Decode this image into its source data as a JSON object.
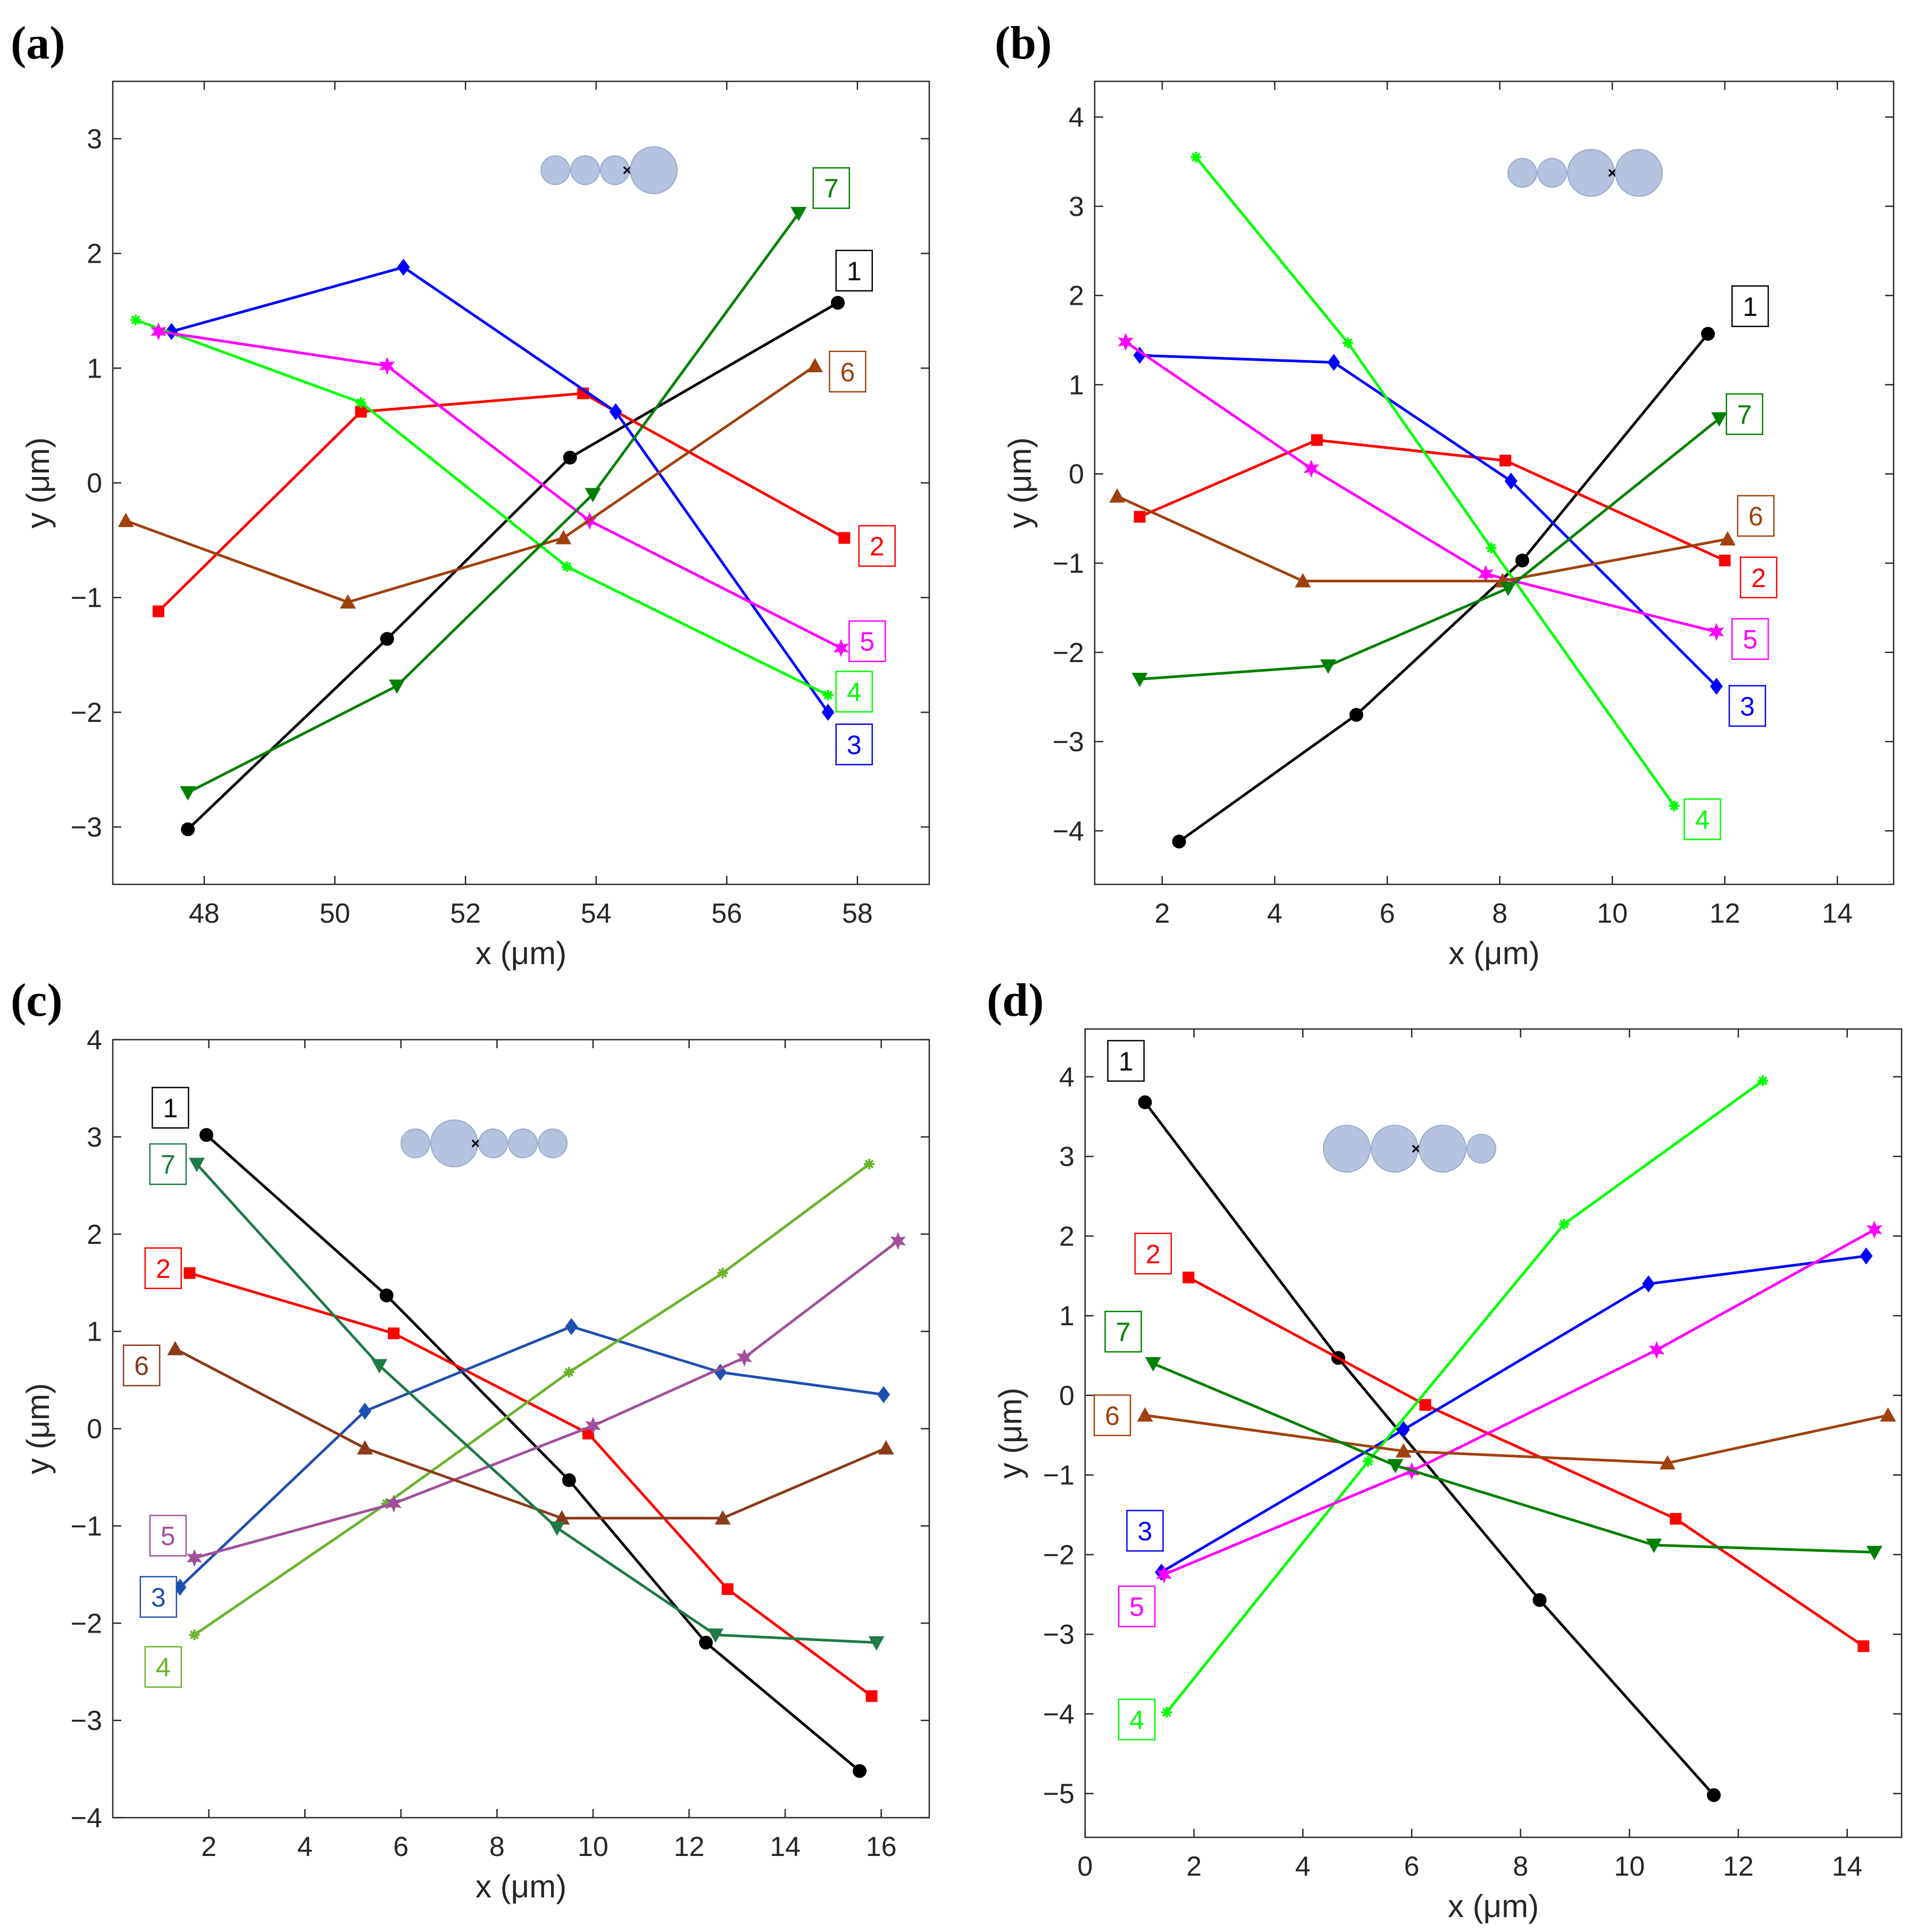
{
  "figure": {
    "marker_cross": "×"
  },
  "chart_data": [
    {
      "type": "line",
      "panel": "(a)",
      "xlabel": "x (μm)",
      "ylabel": "y (μm)",
      "xlim": [
        46.6,
        59.1
      ],
      "ylim": [
        -3.5,
        3.5
      ],
      "xticks": [
        48,
        50,
        52,
        54,
        56,
        58
      ],
      "yticks": [
        -3,
        -2,
        -1,
        0,
        1,
        2,
        3
      ],
      "inset": {
        "sizes": [
          "small",
          "small",
          "small",
          "large"
        ],
        "cross_index": 2
      },
      "series": [
        {
          "name": "1",
          "color": "#000000",
          "marker": "circle",
          "x": [
            47.75,
            50.8,
            53.6,
            57.7
          ],
          "y": [
            -3.02,
            -1.36,
            0.22,
            1.57
          ],
          "label_pos": [
            57.95,
            1.85
          ]
        },
        {
          "name": "2",
          "color": "#ff0000",
          "marker": "square",
          "x": [
            47.3,
            50.4,
            53.8,
            57.8
          ],
          "y": [
            -1.12,
            0.62,
            0.78,
            -0.48
          ],
          "label_pos": [
            58.3,
            -0.55
          ]
        },
        {
          "name": "3",
          "color": "#0000ff",
          "marker": "diamond",
          "x": [
            47.5,
            51.05,
            54.3,
            57.55
          ],
          "y": [
            1.32,
            1.88,
            0.62,
            -2.0
          ],
          "label_pos": [
            57.95,
            -2.28
          ]
        },
        {
          "name": "4",
          "color": "#00ff00",
          "marker": "plus",
          "x": [
            46.95,
            50.4,
            53.55,
            57.55
          ],
          "y": [
            1.42,
            0.7,
            -0.73,
            -1.85
          ],
          "label_pos": [
            57.95,
            -1.82
          ]
        },
        {
          "name": "5",
          "color": "#ff00ff",
          "marker": "hexagram",
          "x": [
            47.3,
            50.8,
            53.9,
            57.75
          ],
          "y": [
            1.32,
            1.02,
            -0.33,
            -1.44
          ],
          "label_pos": [
            58.15,
            -1.38
          ]
        },
        {
          "name": "6",
          "color": "#a0410d",
          "marker": "triangle-up",
          "x": [
            46.8,
            50.2,
            53.5,
            57.35
          ],
          "y": [
            -0.33,
            -1.04,
            -0.48,
            1.02
          ],
          "label_pos": [
            57.85,
            0.97
          ]
        },
        {
          "name": "7",
          "color": "#008000",
          "marker": "triangle-down",
          "x": [
            47.75,
            50.95,
            53.95,
            57.1
          ],
          "y": [
            -2.7,
            -1.77,
            -0.1,
            2.35
          ],
          "label_pos": [
            57.6,
            2.57
          ]
        }
      ]
    },
    {
      "type": "line",
      "panel": "(b)",
      "xlabel": "x (μm)",
      "ylabel": "y (μm)",
      "xlim": [
        0.8,
        15.0
      ],
      "ylim": [
        -4.6,
        4.4
      ],
      "xticks": [
        2,
        4,
        6,
        8,
        10,
        12,
        14
      ],
      "yticks": [
        -4,
        -3,
        -2,
        -1,
        0,
        1,
        2,
        3,
        4
      ],
      "inset": {
        "sizes": [
          "small",
          "small",
          "large",
          "large"
        ],
        "cross_index": 2
      },
      "series": [
        {
          "name": "1",
          "color": "#000000",
          "marker": "circle",
          "x": [
            2.3,
            5.45,
            8.4,
            11.7
          ],
          "y": [
            -4.12,
            -2.7,
            -0.97,
            1.57
          ],
          "label_pos": [
            12.45,
            1.88
          ]
        },
        {
          "name": "2",
          "color": "#ff0000",
          "marker": "square",
          "x": [
            1.6,
            4.75,
            8.1,
            12.0
          ],
          "y": [
            -0.48,
            0.38,
            0.15,
            -0.97
          ],
          "label_pos": [
            12.6,
            -1.16
          ]
        },
        {
          "name": "3",
          "color": "#0000ff",
          "marker": "diamond",
          "x": [
            1.6,
            5.05,
            8.2,
            11.85
          ],
          "y": [
            1.33,
            1.25,
            -0.08,
            -2.38
          ],
          "label_pos": [
            12.4,
            -2.6
          ]
        },
        {
          "name": "4",
          "color": "#00ff00",
          "marker": "plus",
          "x": [
            2.6,
            5.3,
            7.85,
            11.1
          ],
          "y": [
            3.55,
            1.47,
            -0.83,
            -3.72
          ],
          "label_pos": [
            11.6,
            -3.87
          ]
        },
        {
          "name": "5",
          "color": "#ff00ff",
          "marker": "hexagram",
          "x": [
            1.35,
            4.65,
            7.75,
            11.85
          ],
          "y": [
            1.48,
            0.06,
            -1.12,
            -1.77
          ],
          "label_pos": [
            12.45,
            -1.85
          ]
        },
        {
          "name": "6",
          "color": "#a0410d",
          "marker": "triangle-up",
          "x": [
            1.2,
            4.5,
            8.05,
            12.05
          ],
          "y": [
            -0.25,
            -1.2,
            -1.2,
            -0.73
          ],
          "label_pos": [
            12.55,
            -0.47
          ]
        },
        {
          "name": "7",
          "color": "#008000",
          "marker": "triangle-down",
          "x": [
            1.6,
            4.95,
            8.15,
            11.9
          ],
          "y": [
            -2.3,
            -2.15,
            -1.28,
            0.62
          ],
          "label_pos": [
            12.35,
            0.67
          ]
        }
      ]
    },
    {
      "type": "line",
      "panel": "(c)",
      "xlabel": "x (μm)",
      "ylabel": "y (μm)",
      "xlim": [
        0.0,
        17.0
      ],
      "ylim": [
        -4.0,
        4.0
      ],
      "xticks": [
        2,
        4,
        6,
        8,
        10,
        12,
        14,
        16
      ],
      "yticks": [
        -4,
        -3,
        -2,
        -1,
        0,
        1,
        2,
        3,
        4
      ],
      "inset": {
        "sizes": [
          "small",
          "large",
          "small",
          "small",
          "small"
        ],
        "cross_index": 1
      },
      "series": [
        {
          "name": "1",
          "color": "#000000",
          "marker": "circle",
          "x": [
            1.95,
            5.7,
            9.5,
            12.35,
            15.55
          ],
          "y": [
            3.02,
            1.37,
            -0.53,
            -2.2,
            -3.52
          ],
          "label_pos": [
            1.2,
            3.3
          ]
        },
        {
          "name": "2",
          "color": "#ff0000",
          "marker": "square",
          "x": [
            1.6,
            5.85,
            9.9,
            12.8,
            15.8
          ],
          "y": [
            1.6,
            0.98,
            -0.05,
            -1.65,
            -2.75
          ],
          "label_pos": [
            1.05,
            1.65
          ]
        },
        {
          "name": "3",
          "color": "#1f4fb0",
          "marker": "diamond",
          "x": [
            1.4,
            5.25,
            9.55,
            12.65,
            16.05
          ],
          "y": [
            -1.63,
            0.18,
            1.05,
            0.58,
            0.35
          ],
          "label_pos": [
            0.95,
            -1.73
          ]
        },
        {
          "name": "4",
          "color": "#6ab42d",
          "marker": "plus",
          "x": [
            1.7,
            5.7,
            9.5,
            12.7,
            15.75
          ],
          "y": [
            -2.12,
            -0.77,
            0.58,
            1.6,
            2.72
          ],
          "label_pos": [
            1.05,
            -2.45
          ]
        },
        {
          "name": "5",
          "color": "#a0509b",
          "marker": "hexagram",
          "x": [
            1.7,
            5.85,
            10.0,
            13.15,
            16.35
          ],
          "y": [
            -1.33,
            -0.77,
            0.03,
            0.73,
            1.93
          ],
          "label_pos": [
            1.15,
            -1.1
          ]
        },
        {
          "name": "6",
          "color": "#8b3a1a",
          "marker": "triangle-up",
          "x": [
            1.3,
            5.25,
            9.35,
            12.7,
            16.1
          ],
          "y": [
            0.82,
            -0.2,
            -0.92,
            -0.92,
            -0.2
          ],
          "label_pos": [
            0.6,
            0.65
          ]
        },
        {
          "name": "7",
          "color": "#1e7a46",
          "marker": "triangle-down",
          "x": [
            1.75,
            5.55,
            9.25,
            12.55,
            15.9
          ],
          "y": [
            2.72,
            0.65,
            -1.02,
            -2.12,
            -2.2
          ],
          "label_pos": [
            1.15,
            2.72
          ]
        }
      ]
    },
    {
      "type": "line",
      "panel": "(d)",
      "xlabel": "x (μm)",
      "ylabel": "y (μm)",
      "xlim": [
        0.0,
        15.0
      ],
      "ylim": [
        -5.55,
        4.6
      ],
      "xticks": [
        0,
        2,
        4,
        6,
        8,
        10,
        12,
        14
      ],
      "yticks": [
        -5,
        -4,
        -3,
        -2,
        -1,
        0,
        1,
        2,
        3,
        4
      ],
      "inset": {
        "sizes": [
          "large",
          "large",
          "large",
          "small"
        ],
        "cross_index": 1
      },
      "series": [
        {
          "name": "1",
          "color": "#000000",
          "marker": "circle",
          "x": [
            1.1,
            4.65,
            8.35,
            11.55
          ],
          "y": [
            3.68,
            0.47,
            -2.57,
            -5.02
          ],
          "label_pos": [
            0.75,
            4.2
          ]
        },
        {
          "name": "2",
          "color": "#ff0000",
          "marker": "square",
          "x": [
            1.9,
            6.25,
            10.85,
            14.3
          ],
          "y": [
            1.48,
            -0.12,
            -1.55,
            -3.15
          ],
          "label_pos": [
            1.25,
            1.78
          ]
        },
        {
          "name": "3",
          "color": "#0000ff",
          "marker": "diamond",
          "x": [
            1.4,
            5.85,
            10.35,
            14.35
          ],
          "y": [
            -2.22,
            -0.43,
            1.4,
            1.75
          ],
          "label_pos": [
            1.1,
            -1.7
          ]
        },
        {
          "name": "4",
          "color": "#00ff00",
          "marker": "plus",
          "x": [
            1.5,
            5.2,
            8.8,
            12.45
          ],
          "y": [
            -3.98,
            -0.83,
            2.15,
            3.95
          ],
          "label_pos": [
            0.95,
            -4.07
          ]
        },
        {
          "name": "5",
          "color": "#ff00ff",
          "marker": "hexagram",
          "x": [
            1.45,
            6.0,
            10.5,
            14.5
          ],
          "y": [
            -2.25,
            -0.95,
            0.57,
            2.08
          ],
          "label_pos": [
            0.95,
            -2.65
          ]
        },
        {
          "name": "6",
          "color": "#a0410d",
          "marker": "triangle-up",
          "x": [
            1.1,
            5.85,
            10.7,
            14.75
          ],
          "y": [
            -0.25,
            -0.7,
            -0.85,
            -0.25
          ],
          "label_pos": [
            0.5,
            -0.25
          ]
        },
        {
          "name": "7",
          "color": "#008000",
          "marker": "triangle-down",
          "x": [
            1.25,
            5.7,
            10.45,
            14.5
          ],
          "y": [
            0.4,
            -0.88,
            -1.88,
            -1.97
          ],
          "label_pos": [
            0.7,
            0.8
          ]
        }
      ]
    }
  ]
}
